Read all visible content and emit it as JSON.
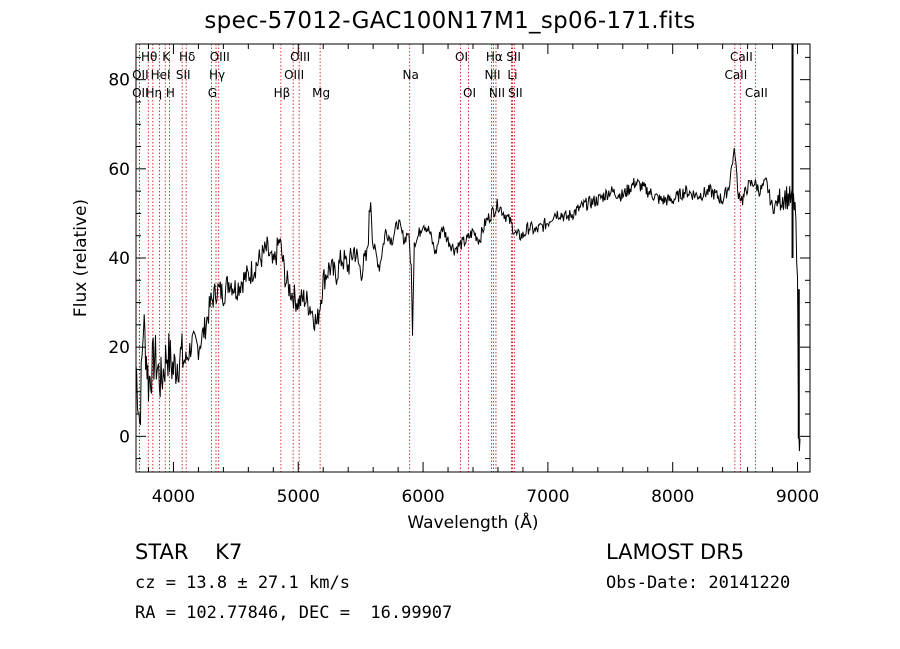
{
  "chart_data": {
    "type": "line",
    "title": "spec-57012-GAC100N17M1_sp06-171.fits",
    "xlabel": "Wavelength (Å)",
    "ylabel": "Flux (relative)",
    "xlim": [
      3700,
      9100
    ],
    "ylim": [
      -8,
      88
    ],
    "xticks": [
      4000,
      5000,
      6000,
      7000,
      8000,
      9000
    ],
    "yticks": [
      0,
      20,
      40,
      60,
      80
    ],
    "series": [
      {
        "x": [
          3700,
          3730,
          3760,
          3800,
          3850,
          3900,
          3950,
          4000,
          4050,
          4100,
          4150,
          4200,
          4250,
          4300,
          4350,
          4400,
          4450,
          4500,
          4550,
          4600,
          4650,
          4700,
          4750,
          4800,
          4850,
          4900,
          4950,
          5000,
          5050,
          5100,
          5150,
          5200,
          5250,
          5300,
          5350,
          5400,
          5450,
          5500,
          5550,
          5580,
          5600,
          5650,
          5700,
          5750,
          5800,
          5850,
          5880,
          5905,
          5915,
          5930,
          5950,
          6000,
          6050,
          6100,
          6150,
          6200,
          6250,
          6300,
          6350,
          6400,
          6450,
          6500,
          6550,
          6600,
          6650,
          6700,
          6750,
          6800,
          6850,
          6900,
          6950,
          7000,
          7050,
          7100,
          7150,
          7200,
          7300,
          7400,
          7500,
          7600,
          7700,
          7800,
          7900,
          8000,
          8100,
          8200,
          8300,
          8400,
          8450,
          8480,
          8500,
          8520,
          8540,
          8560,
          8600,
          8650,
          8700,
          8750,
          8800,
          8850,
          8900,
          8950,
          8980,
          9000,
          9010,
          9020
        ],
        "values": [
          16,
          3,
          26,
          12,
          18,
          12,
          19,
          15,
          18,
          17,
          21,
          20,
          24,
          30,
          33,
          32,
          35,
          33,
          35,
          36,
          38,
          40,
          42,
          38,
          44,
          35,
          32,
          30,
          31,
          29,
          25,
          35,
          38,
          36,
          40,
          38,
          42,
          37,
          40,
          54,
          43,
          38,
          46,
          44,
          48,
          44,
          46,
          38,
          24,
          44,
          44,
          48,
          46,
          41,
          47,
          44,
          42,
          43,
          44,
          46,
          44,
          48,
          50,
          52,
          50,
          48,
          45,
          45,
          47,
          46,
          47,
          48,
          50,
          50,
          49,
          50,
          52,
          53,
          55,
          54,
          57,
          55,
          53,
          53,
          55,
          54,
          55,
          53,
          56,
          62,
          64,
          55,
          54,
          53,
          56,
          57,
          55,
          57,
          51,
          53,
          54,
          53,
          52,
          33,
          -0.5,
          -0.5
        ]
      }
    ],
    "spectral_lines": [
      {
        "label": "OII",
        "wavelength": 3727,
        "row": 2
      },
      {
        "label": "Hθ",
        "wavelength": 3798,
        "row": 0
      },
      {
        "label": "OII",
        "wavelength": 3727,
        "row": 1
      },
      {
        "label": "Hη",
        "wavelength": 3835,
        "row": 2
      },
      {
        "label": "K",
        "wavelength": 3934,
        "row": 0
      },
      {
        "label": "HeI",
        "wavelength": 3889,
        "row": 1
      },
      {
        "label": "H",
        "wavelength": 3968,
        "row": 2
      },
      {
        "label": "Hδ",
        "wavelength": 4102,
        "row": 0
      },
      {
        "label": "SII",
        "wavelength": 4070,
        "row": 1
      },
      {
        "label": "OIII",
        "wavelength": 4363,
        "row": 0
      },
      {
        "label": "Hγ",
        "wavelength": 4341,
        "row": 1
      },
      {
        "label": "G",
        "wavelength": 4304,
        "row": 2
      },
      {
        "label": "OIII",
        "wavelength": 5007,
        "row": 0
      },
      {
        "label": "OIII",
        "wavelength": 4959,
        "row": 1
      },
      {
        "label": "Hβ",
        "wavelength": 4861,
        "row": 2
      },
      {
        "label": "Mg",
        "wavelength": 5175,
        "row": 2
      },
      {
        "label": "Na",
        "wavelength": 5893,
        "row": 1
      },
      {
        "label": "OI",
        "wavelength": 6300,
        "row": 0
      },
      {
        "label": "OI",
        "wavelength": 6364,
        "row": 2
      },
      {
        "label": "Hα",
        "wavelength": 6563,
        "row": 0
      },
      {
        "label": "NII",
        "wavelength": 6548,
        "row": 1
      },
      {
        "label": "NII",
        "wavelength": 6584,
        "row": 2
      },
      {
        "label": "SII",
        "wavelength": 6717,
        "row": 0
      },
      {
        "label": "Li",
        "wavelength": 6708,
        "row": 1
      },
      {
        "label": "SII",
        "wavelength": 6731,
        "row": 2
      },
      {
        "label": "CaII",
        "wavelength": 8542,
        "row": 0
      },
      {
        "label": "CaII",
        "wavelength": 8498,
        "row": 1
      },
      {
        "label": "CaII",
        "wavelength": 8662,
        "row": 2
      }
    ],
    "line_color": "#000000",
    "marker_color": "#cc0000"
  },
  "info": {
    "object_class": "STAR    K7",
    "survey": "LAMOST DR5",
    "redshift": "cz = 13.8 ± 27.1 km/s",
    "obs_date": "Obs-Date: 20141220",
    "coords": "RA = 102.77846, DEC =  16.99907"
  }
}
